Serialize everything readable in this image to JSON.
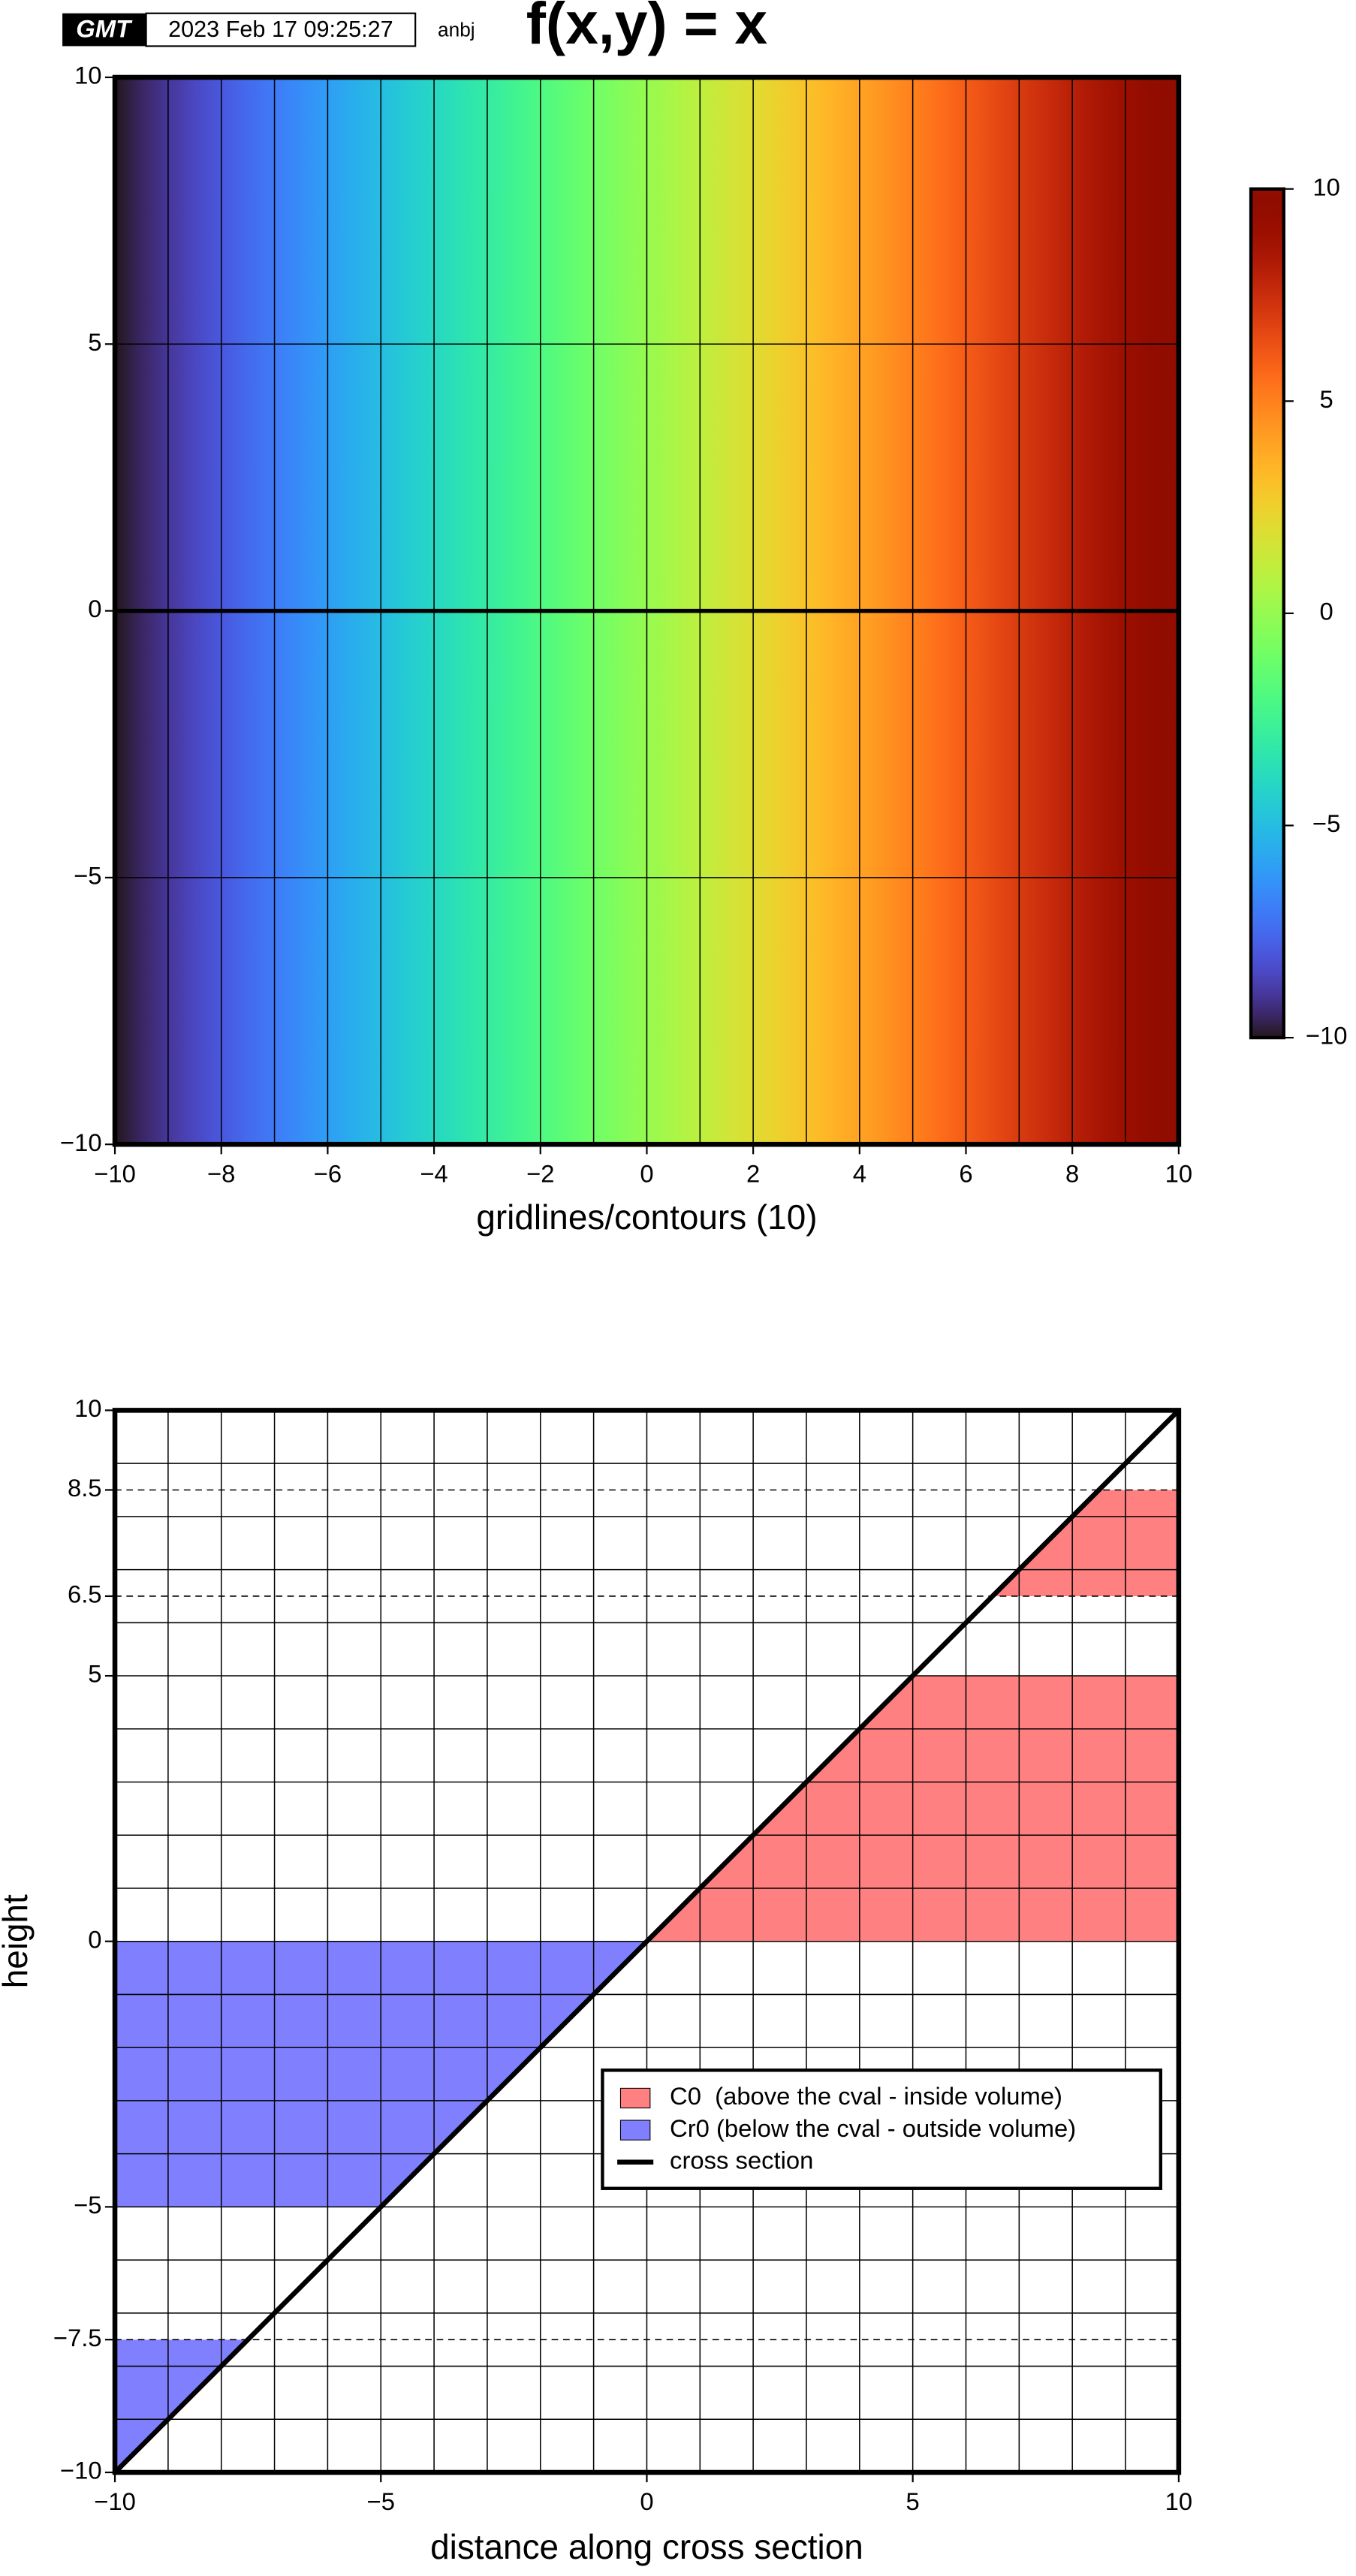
{
  "header": {
    "logo": "GMT",
    "timestamp": "2023 Feb 17 09:25:27",
    "user": "anbj"
  },
  "chart_data": [
    {
      "type": "heatmap",
      "title": "f(x,y) = x",
      "x_label": "gridlines/contours (10)",
      "colormap": "turbo",
      "clim": [
        -10,
        10
      ],
      "contour_interval": 1,
      "zero_line": true,
      "xlim": [
        -10,
        10
      ],
      "ylim": [
        -10,
        10
      ],
      "xticks": [
        {
          "value": -10,
          "label": "−10"
        },
        {
          "value": -8,
          "label": "−8"
        },
        {
          "value": -6,
          "label": "−6"
        },
        {
          "value": -4,
          "label": "−4"
        },
        {
          "value": -2,
          "label": "−2"
        },
        0,
        2,
        4,
        6,
        8,
        10
      ],
      "yticks": [
        {
          "value": -10,
          "label": "−10"
        },
        {
          "value": -5,
          "label": "−5"
        },
        0,
        5,
        10
      ],
      "colorbar_ticks": [
        {
          "value": -10,
          "label": "−10"
        },
        {
          "value": -5,
          "label": "−5"
        },
        0,
        5,
        10
      ]
    },
    {
      "type": "cross_section",
      "x_label": "distance along cross section",
      "y_label": "height",
      "xlim": [
        -10,
        10
      ],
      "ylim": [
        -10,
        10
      ],
      "minor_grid_step": 1,
      "hlines": [
        8.5,
        6.5,
        -7.5
      ],
      "xticks": [
        {
          "value": -10,
          "label": "−10"
        },
        {
          "value": -5,
          "label": "−5"
        },
        0,
        5,
        10
      ],
      "yticks": [
        {
          "value": -10,
          "label": "−10"
        },
        {
          "value": -7.5,
          "label": "−7.5"
        },
        {
          "value": -5,
          "label": "−5"
        },
        0,
        5,
        6.5,
        8.5,
        10
      ],
      "legend": "lower right",
      "series": [
        {
          "name": "C0  (above the cval - inside volume)",
          "color": "#ff8080",
          "polygons": [
            {
              "x": [
                0,
                10,
                10,
                5
              ],
              "y": [
                0,
                0,
                5,
                5
              ]
            },
            {
              "x": [
                6.5,
                10,
                10,
                8.5
              ],
              "y": [
                6.5,
                6.5,
                8.5,
                8.5
              ]
            }
          ]
        },
        {
          "name": "Cr0 (below the cval - outside volume)",
          "color": "#8080ff",
          "polygons": [
            {
              "x": [
                -10,
                0,
                -5,
                -10
              ],
              "y": [
                0,
                0,
                -5,
                -5
              ]
            },
            {
              "x": [
                -10,
                -7.5,
                -10
              ],
              "y": [
                -7.5,
                -7.5,
                -10
              ]
            }
          ]
        },
        {
          "name": "cross section",
          "color": "#000000",
          "line": {
            "x": [
              -10,
              10
            ],
            "y": [
              -10,
              10
            ]
          }
        }
      ]
    }
  ]
}
